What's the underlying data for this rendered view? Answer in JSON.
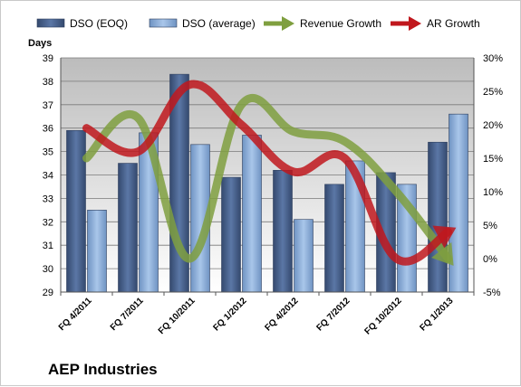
{
  "company": "AEP Industries",
  "chart_data": {
    "type": "bar",
    "categories": [
      "FQ 4/2011",
      "FQ 7/2011",
      "FQ 10/2011",
      "FQ 1/2012",
      "FQ 4/2012",
      "FQ 7/2012",
      "FQ 10/2012",
      "FQ 1/2013"
    ],
    "series": [
      {
        "name": "DSO (EOQ)",
        "type": "bar",
        "axis": "left",
        "color": "#4a6490",
        "values": [
          35.9,
          34.5,
          38.3,
          33.9,
          34.2,
          33.6,
          34.1,
          35.4
        ]
      },
      {
        "name": "DSO (average)",
        "type": "bar",
        "axis": "left",
        "color": "#8fb2dd",
        "values": [
          32.5,
          35.8,
          35.3,
          35.7,
          32.1,
          34.6,
          33.6,
          36.6
        ]
      },
      {
        "name": "Revenue Growth",
        "type": "line",
        "axis": "right",
        "unit": "%",
        "color": "#7f9f3f",
        "values": [
          15.0,
          21.0,
          0.0,
          23.0,
          19.0,
          17.5,
          10.0,
          0.0
        ]
      },
      {
        "name": "AR Growth",
        "type": "line",
        "axis": "right",
        "unit": "%",
        "color": "#c0171d",
        "values": [
          19.5,
          16.0,
          26.0,
          20.0,
          13.0,
          15.0,
          0.0,
          4.0
        ]
      }
    ],
    "y_left": {
      "label": "Days",
      "min": 29,
      "max": 39,
      "ticks": [
        "29",
        "30",
        "31",
        "32",
        "33",
        "34",
        "35",
        "36",
        "37",
        "38",
        "39"
      ]
    },
    "y_right": {
      "min": -5,
      "max": 30,
      "ticks": [
        "-5%",
        "0%",
        "5%",
        "10%",
        "15%",
        "20%",
        "25%",
        "30%"
      ]
    },
    "grid": true,
    "legend_position": "top"
  }
}
